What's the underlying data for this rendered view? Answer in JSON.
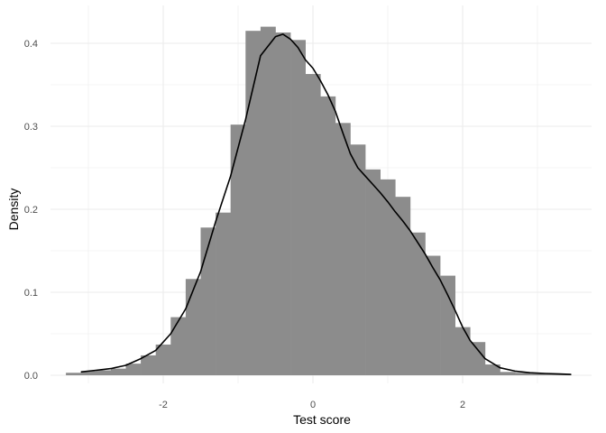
{
  "chart_data": {
    "type": "bar",
    "subtype": "histogram-with-density",
    "title": "",
    "xlabel": "Test score",
    "ylabel": "Density",
    "xlim": [
      -3.3,
      3.55
    ],
    "ylim": [
      0,
      0.425
    ],
    "x_ticks": [
      -2,
      0,
      2
    ],
    "x_tick_labels": [
      "-2",
      "0",
      "2"
    ],
    "y_ticks": [
      0.0,
      0.1,
      0.2,
      0.3,
      0.4
    ],
    "y_tick_labels": [
      "0.0",
      "0.1",
      "0.2",
      "0.3",
      "0.4"
    ],
    "grid": true,
    "bin_width": 0.2,
    "bins": [
      {
        "x0": -3.3,
        "x1": -3.1,
        "density": 0.003
      },
      {
        "x0": -3.1,
        "x1": -2.9,
        "density": 0.005
      },
      {
        "x0": -2.9,
        "x1": -2.7,
        "density": 0.006
      },
      {
        "x0": -2.7,
        "x1": -2.5,
        "density": 0.008
      },
      {
        "x0": -2.5,
        "x1": -2.3,
        "density": 0.014
      },
      {
        "x0": -2.3,
        "x1": -2.1,
        "density": 0.024
      },
      {
        "x0": -2.1,
        "x1": -1.9,
        "density": 0.037
      },
      {
        "x0": -1.9,
        "x1": -1.7,
        "density": 0.07
      },
      {
        "x0": -1.7,
        "x1": -1.5,
        "density": 0.116
      },
      {
        "x0": -1.5,
        "x1": -1.3,
        "density": 0.178
      },
      {
        "x0": -1.3,
        "x1": -1.1,
        "density": 0.196
      },
      {
        "x0": -1.1,
        "x1": -0.9,
        "density": 0.302
      },
      {
        "x0": -0.9,
        "x1": -0.7,
        "density": 0.415
      },
      {
        "x0": -0.7,
        "x1": -0.5,
        "density": 0.42
      },
      {
        "x0": -0.5,
        "x1": -0.3,
        "density": 0.413
      },
      {
        "x0": -0.3,
        "x1": -0.1,
        "density": 0.404
      },
      {
        "x0": -0.1,
        "x1": 0.1,
        "density": 0.363
      },
      {
        "x0": 0.1,
        "x1": 0.3,
        "density": 0.336
      },
      {
        "x0": 0.3,
        "x1": 0.5,
        "density": 0.304
      },
      {
        "x0": 0.5,
        "x1": 0.7,
        "density": 0.278
      },
      {
        "x0": 0.7,
        "x1": 0.9,
        "density": 0.248
      },
      {
        "x0": 0.9,
        "x1": 1.1,
        "density": 0.236
      },
      {
        "x0": 1.1,
        "x1": 1.3,
        "density": 0.215
      },
      {
        "x0": 1.3,
        "x1": 1.5,
        "density": 0.172
      },
      {
        "x0": 1.5,
        "x1": 1.7,
        "density": 0.144
      },
      {
        "x0": 1.7,
        "x1": 1.9,
        "density": 0.12
      },
      {
        "x0": 1.9,
        "x1": 2.1,
        "density": 0.058
      },
      {
        "x0": 2.1,
        "x1": 2.3,
        "density": 0.04
      },
      {
        "x0": 2.3,
        "x1": 2.5,
        "density": 0.013
      },
      {
        "x0": 2.5,
        "x1": 2.7,
        "density": 0.004
      },
      {
        "x0": 2.7,
        "x1": 2.9,
        "density": 0.003
      },
      {
        "x0": 2.9,
        "x1": 3.1,
        "density": 0.002
      },
      {
        "x0": 3.1,
        "x1": 3.3,
        "density": 0.0015
      },
      {
        "x0": 3.3,
        "x1": 3.45,
        "density": 0.001
      }
    ],
    "density_curve": {
      "x": [
        -3.1,
        -2.9,
        -2.7,
        -2.5,
        -2.3,
        -2.1,
        -1.9,
        -1.7,
        -1.5,
        -1.3,
        -1.1,
        -0.9,
        -0.7,
        -0.5,
        -0.4,
        -0.3,
        -0.2,
        -0.1,
        0.0,
        0.1,
        0.2,
        0.3,
        0.4,
        0.5,
        0.6,
        0.7,
        0.8,
        0.9,
        1.0,
        1.1,
        1.2,
        1.3,
        1.4,
        1.5,
        1.6,
        1.7,
        1.8,
        1.9,
        2.0,
        2.1,
        2.3,
        2.5,
        2.7,
        2.9,
        3.1,
        3.3,
        3.45
      ],
      "y": [
        0.004,
        0.006,
        0.008,
        0.012,
        0.02,
        0.03,
        0.05,
        0.08,
        0.125,
        0.185,
        0.24,
        0.308,
        0.385,
        0.408,
        0.411,
        0.405,
        0.395,
        0.38,
        0.37,
        0.355,
        0.338,
        0.318,
        0.292,
        0.267,
        0.25,
        0.24,
        0.23,
        0.22,
        0.209,
        0.197,
        0.186,
        0.174,
        0.16,
        0.146,
        0.13,
        0.115,
        0.097,
        0.078,
        0.058,
        0.042,
        0.02,
        0.009,
        0.005,
        0.003,
        0.0022,
        0.0015,
        0.001
      ]
    },
    "colors": {
      "bars": "#8c8c8c",
      "curve": "#000000",
      "grid": "#ebebeb",
      "tick_text": "#4d4d4d",
      "axis_title": "#000000",
      "background": "#ffffff"
    }
  }
}
